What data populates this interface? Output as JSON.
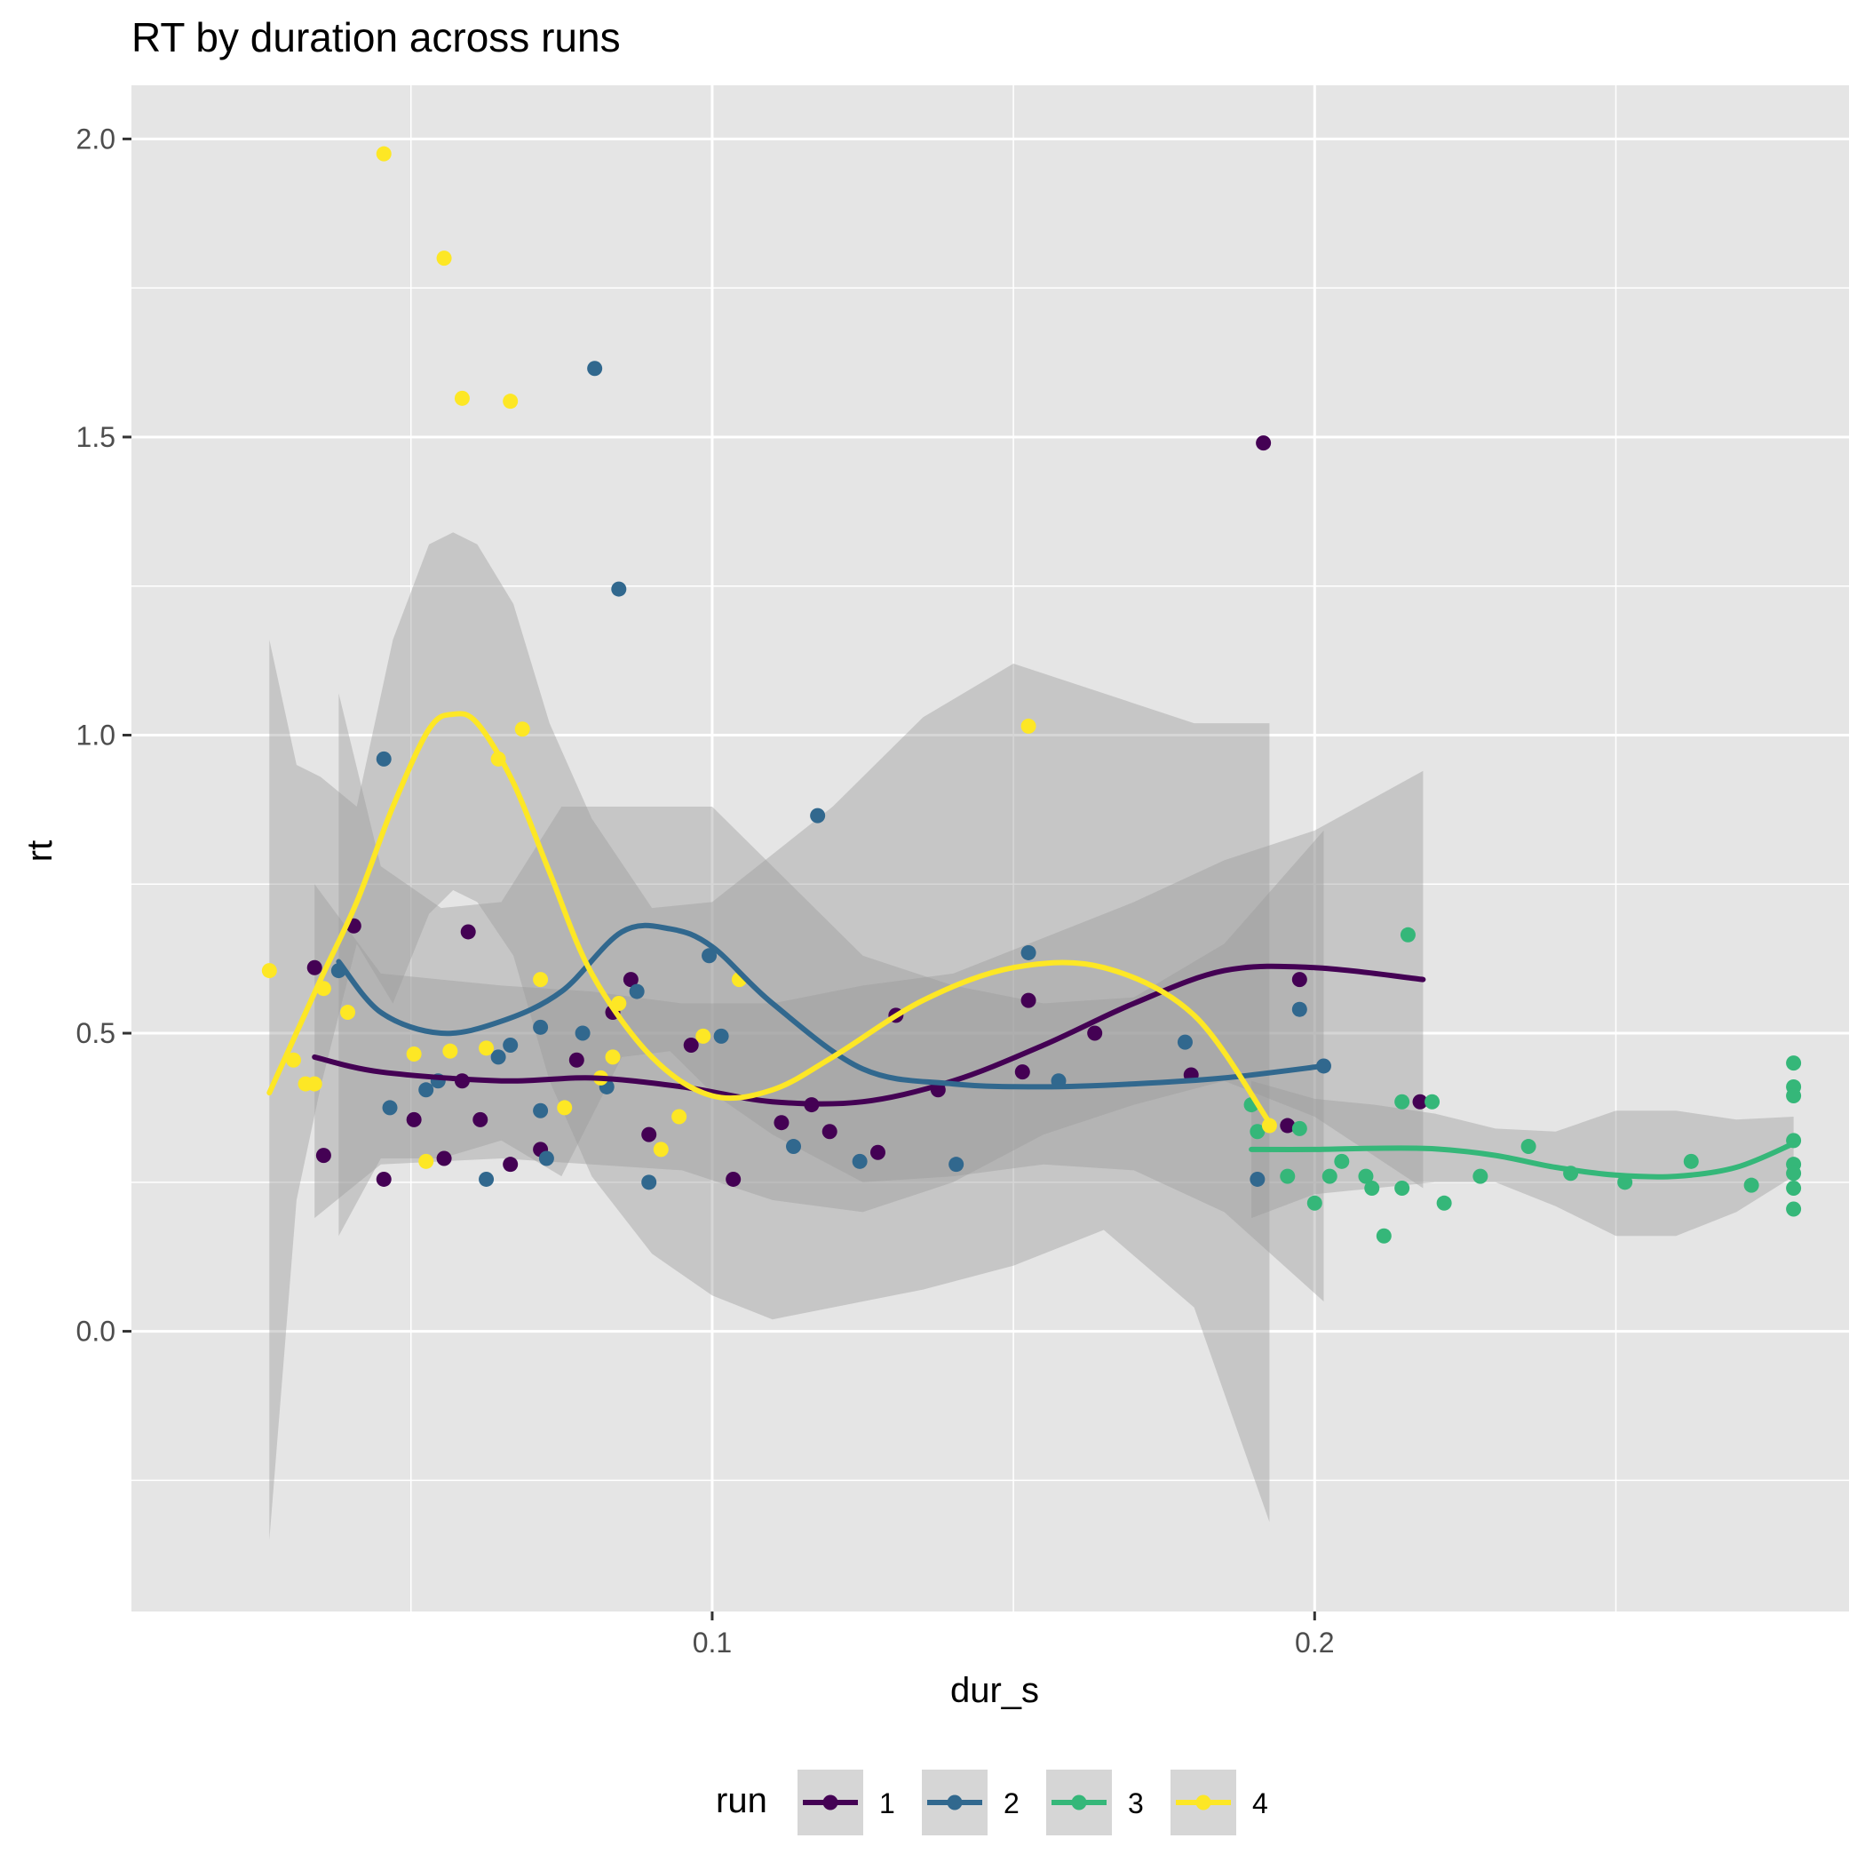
{
  "chart_data": {
    "type": "scatter",
    "title": "RT by duration across runs",
    "xlabel": "dur_s",
    "ylabel": "rt",
    "xlim": [
      0.0036,
      0.2887
    ],
    "ylim": [
      -0.47,
      2.09
    ],
    "x_ticks": [
      0.1,
      0.2
    ],
    "x_tick_labels": [
      "0.1",
      "0.2"
    ],
    "y_ticks": [
      0.0,
      0.5,
      1.0,
      1.5,
      2.0
    ],
    "y_tick_labels": [
      "0.0",
      "0.5",
      "1.0",
      "1.5",
      "2.0"
    ],
    "grid": true,
    "legend": {
      "title": "run",
      "position": "bottom",
      "entries": [
        "1",
        "2",
        "3",
        "4"
      ]
    },
    "colors": {
      "1": "#440154",
      "2": "#31688E",
      "3": "#35B779",
      "4": "#FDE725",
      "panel": "#E5E5E5",
      "ribbon": "#999999"
    },
    "series": [
      {
        "name": "1",
        "points": [
          [
            0.034,
            0.61
          ],
          [
            0.0355,
            0.295
          ],
          [
            0.0405,
            0.68
          ],
          [
            0.0455,
            0.255
          ],
          [
            0.0505,
            0.355
          ],
          [
            0.0555,
            0.29
          ],
          [
            0.0585,
            0.42
          ],
          [
            0.0595,
            0.67
          ],
          [
            0.0615,
            0.355
          ],
          [
            0.0665,
            0.28
          ],
          [
            0.0715,
            0.305
          ],
          [
            0.0775,
            0.455
          ],
          [
            0.0835,
            0.535
          ],
          [
            0.0865,
            0.59
          ],
          [
            0.0895,
            0.33
          ],
          [
            0.0965,
            0.48
          ],
          [
            0.1035,
            0.255
          ],
          [
            0.1115,
            0.35
          ],
          [
            0.1165,
            0.38
          ],
          [
            0.1195,
            0.335
          ],
          [
            0.1275,
            0.3
          ],
          [
            0.1305,
            0.53
          ],
          [
            0.1375,
            0.405
          ],
          [
            0.1515,
            0.435
          ],
          [
            0.1525,
            0.555
          ],
          [
            0.1635,
            0.5
          ],
          [
            0.1795,
            0.43
          ],
          [
            0.1915,
            1.49
          ],
          [
            0.1955,
            0.345
          ],
          [
            0.1975,
            0.59
          ],
          [
            0.2175,
            0.385
          ]
        ],
        "smooth": [
          [
            0.034,
            0.46
          ],
          [
            0.045,
            0.435
          ],
          [
            0.065,
            0.42
          ],
          [
            0.08,
            0.425
          ],
          [
            0.095,
            0.41
          ],
          [
            0.11,
            0.385
          ],
          [
            0.125,
            0.385
          ],
          [
            0.14,
            0.42
          ],
          [
            0.155,
            0.48
          ],
          [
            0.17,
            0.55
          ],
          [
            0.185,
            0.605
          ],
          [
            0.2,
            0.61
          ],
          [
            0.218,
            0.59
          ]
        ],
        "band": [
          [
            0.034,
            0.19,
            0.75
          ],
          [
            0.045,
            0.28,
            0.6
          ],
          [
            0.065,
            0.29,
            0.58
          ],
          [
            0.08,
            0.28,
            0.57
          ],
          [
            0.095,
            0.27,
            0.55
          ],
          [
            0.11,
            0.22,
            0.55
          ],
          [
            0.125,
            0.2,
            0.58
          ],
          [
            0.14,
            0.25,
            0.6
          ],
          [
            0.155,
            0.33,
            0.66
          ],
          [
            0.17,
            0.38,
            0.72
          ],
          [
            0.185,
            0.42,
            0.79
          ],
          [
            0.2,
            0.36,
            0.84
          ],
          [
            0.218,
            0.24,
            0.94
          ]
        ]
      },
      {
        "name": "2",
        "points": [
          [
            0.038,
            0.605
          ],
          [
            0.0455,
            0.96
          ],
          [
            0.0465,
            0.375
          ],
          [
            0.0525,
            0.405
          ],
          [
            0.0545,
            0.42
          ],
          [
            0.0625,
            0.255
          ],
          [
            0.0645,
            0.46
          ],
          [
            0.0665,
            0.48
          ],
          [
            0.0715,
            0.37
          ],
          [
            0.0715,
            0.51
          ],
          [
            0.0725,
            0.29
          ],
          [
            0.0785,
            0.5
          ],
          [
            0.0805,
            1.615
          ],
          [
            0.0825,
            0.41
          ],
          [
            0.0845,
            1.245
          ],
          [
            0.0875,
            0.57
          ],
          [
            0.0895,
            0.25
          ],
          [
            0.0995,
            0.63
          ],
          [
            0.1015,
            0.495
          ],
          [
            0.1135,
            0.31
          ],
          [
            0.1175,
            0.865
          ],
          [
            0.1245,
            0.285
          ],
          [
            0.1405,
            0.28
          ],
          [
            0.1525,
            0.635
          ],
          [
            0.1575,
            0.42
          ],
          [
            0.1785,
            0.485
          ],
          [
            0.1905,
            0.255
          ],
          [
            0.1975,
            0.54
          ],
          [
            0.2015,
            0.445
          ]
        ],
        "smooth": [
          [
            0.038,
            0.62
          ],
          [
            0.045,
            0.535
          ],
          [
            0.055,
            0.5
          ],
          [
            0.065,
            0.52
          ],
          [
            0.075,
            0.57
          ],
          [
            0.085,
            0.67
          ],
          [
            0.093,
            0.675
          ],
          [
            0.1,
            0.645
          ],
          [
            0.11,
            0.55
          ],
          [
            0.125,
            0.44
          ],
          [
            0.14,
            0.415
          ],
          [
            0.155,
            0.41
          ],
          [
            0.17,
            0.415
          ],
          [
            0.185,
            0.425
          ],
          [
            0.2015,
            0.445
          ]
        ],
        "band": [
          [
            0.038,
            0.16,
            1.07
          ],
          [
            0.045,
            0.29,
            0.78
          ],
          [
            0.055,
            0.29,
            0.71
          ],
          [
            0.065,
            0.32,
            0.72
          ],
          [
            0.075,
            0.26,
            0.88
          ],
          [
            0.085,
            0.46,
            0.88
          ],
          [
            0.093,
            0.47,
            0.88
          ],
          [
            0.1,
            0.4,
            0.88
          ],
          [
            0.11,
            0.33,
            0.78
          ],
          [
            0.125,
            0.25,
            0.63
          ],
          [
            0.14,
            0.26,
            0.58
          ],
          [
            0.155,
            0.28,
            0.55
          ],
          [
            0.17,
            0.27,
            0.56
          ],
          [
            0.185,
            0.2,
            0.65
          ],
          [
            0.2015,
            0.05,
            0.84
          ]
        ]
      },
      {
        "name": "3",
        "points": [
          [
            0.1895,
            0.38
          ],
          [
            0.1905,
            0.335
          ],
          [
            0.1955,
            0.26
          ],
          [
            0.1975,
            0.34
          ],
          [
            0.2,
            0.215
          ],
          [
            0.2025,
            0.26
          ],
          [
            0.2045,
            0.285
          ],
          [
            0.2085,
            0.26
          ],
          [
            0.2095,
            0.24
          ],
          [
            0.2115,
            0.16
          ],
          [
            0.2145,
            0.385
          ],
          [
            0.2145,
            0.24
          ],
          [
            0.2155,
            0.665
          ],
          [
            0.2195,
            0.385
          ],
          [
            0.2215,
            0.215
          ],
          [
            0.2275,
            0.26
          ],
          [
            0.2355,
            0.31
          ],
          [
            0.2425,
            0.265
          ],
          [
            0.2515,
            0.25
          ],
          [
            0.2625,
            0.285
          ],
          [
            0.2725,
            0.245
          ],
          [
            0.2795,
            0.45
          ],
          [
            0.2795,
            0.41
          ],
          [
            0.2795,
            0.395
          ],
          [
            0.2795,
            0.32
          ],
          [
            0.2795,
            0.28
          ],
          [
            0.2795,
            0.265
          ],
          [
            0.2795,
            0.24
          ],
          [
            0.2795,
            0.205
          ]
        ],
        "smooth": [
          [
            0.1895,
            0.305
          ],
          [
            0.2,
            0.305
          ],
          [
            0.21,
            0.307
          ],
          [
            0.22,
            0.306
          ],
          [
            0.23,
            0.295
          ],
          [
            0.24,
            0.275
          ],
          [
            0.25,
            0.262
          ],
          [
            0.26,
            0.26
          ],
          [
            0.27,
            0.275
          ],
          [
            0.2795,
            0.315
          ]
        ],
        "band": [
          [
            0.1895,
            0.19,
            0.42
          ],
          [
            0.2,
            0.23,
            0.39
          ],
          [
            0.21,
            0.24,
            0.38
          ],
          [
            0.22,
            0.25,
            0.365
          ],
          [
            0.23,
            0.25,
            0.34
          ],
          [
            0.24,
            0.21,
            0.335
          ],
          [
            0.25,
            0.16,
            0.37
          ],
          [
            0.26,
            0.16,
            0.37
          ],
          [
            0.27,
            0.2,
            0.355
          ],
          [
            0.2795,
            0.26,
            0.36
          ]
        ]
      },
      {
        "name": "4",
        "points": [
          [
            0.0265,
            0.605
          ],
          [
            0.0305,
            0.455
          ],
          [
            0.0325,
            0.415
          ],
          [
            0.034,
            0.415
          ],
          [
            0.0355,
            0.575
          ],
          [
            0.0395,
            0.535
          ],
          [
            0.0455,
            1.975
          ],
          [
            0.0505,
            0.465
          ],
          [
            0.0525,
            0.285
          ],
          [
            0.0565,
            0.47
          ],
          [
            0.0555,
            1.8
          ],
          [
            0.0585,
            1.565
          ],
          [
            0.0625,
            0.475
          ],
          [
            0.0645,
            0.96
          ],
          [
            0.0665,
            1.56
          ],
          [
            0.0685,
            1.01
          ],
          [
            0.0715,
            0.59
          ],
          [
            0.0755,
            0.375
          ],
          [
            0.0815,
            0.425
          ],
          [
            0.0835,
            0.46
          ],
          [
            0.0845,
            0.55
          ],
          [
            0.0915,
            0.305
          ],
          [
            0.0945,
            0.36
          ],
          [
            0.0985,
            0.495
          ],
          [
            0.1045,
            0.59
          ],
          [
            0.1525,
            1.015
          ],
          [
            0.1925,
            0.345
          ]
        ],
        "smooth": [
          [
            0.0265,
            0.4
          ],
          [
            0.035,
            0.59
          ],
          [
            0.041,
            0.72
          ],
          [
            0.047,
            0.88
          ],
          [
            0.053,
            1.01
          ],
          [
            0.057,
            1.035
          ],
          [
            0.061,
            1.02
          ],
          [
            0.067,
            0.92
          ],
          [
            0.073,
            0.77
          ],
          [
            0.08,
            0.6
          ],
          [
            0.09,
            0.46
          ],
          [
            0.1,
            0.395
          ],
          [
            0.11,
            0.405
          ],
          [
            0.12,
            0.46
          ],
          [
            0.135,
            0.555
          ],
          [
            0.15,
            0.61
          ],
          [
            0.165,
            0.61
          ],
          [
            0.18,
            0.53
          ],
          [
            0.1925,
            0.35
          ]
        ],
        "band": [
          [
            0.0265,
            -0.35,
            1.16
          ],
          [
            0.031,
            0.22,
            0.95
          ],
          [
            0.035,
            0.41,
            0.93
          ],
          [
            0.041,
            0.65,
            0.88
          ],
          [
            0.047,
            0.55,
            1.16
          ],
          [
            0.053,
            0.7,
            1.32
          ],
          [
            0.057,
            0.74,
            1.34
          ],
          [
            0.061,
            0.72,
            1.32
          ],
          [
            0.067,
            0.63,
            1.22
          ],
          [
            0.073,
            0.42,
            1.02
          ],
          [
            0.08,
            0.26,
            0.86
          ],
          [
            0.09,
            0.13,
            0.71
          ],
          [
            0.1,
            0.06,
            0.72
          ],
          [
            0.11,
            0.02,
            0.8
          ],
          [
            0.12,
            0.04,
            0.88
          ],
          [
            0.135,
            0.07,
            1.03
          ],
          [
            0.15,
            0.11,
            1.12
          ],
          [
            0.165,
            0.17,
            1.07
          ],
          [
            0.18,
            0.04,
            1.02
          ],
          [
            0.1925,
            -0.32,
            1.02
          ]
        ]
      }
    ]
  }
}
